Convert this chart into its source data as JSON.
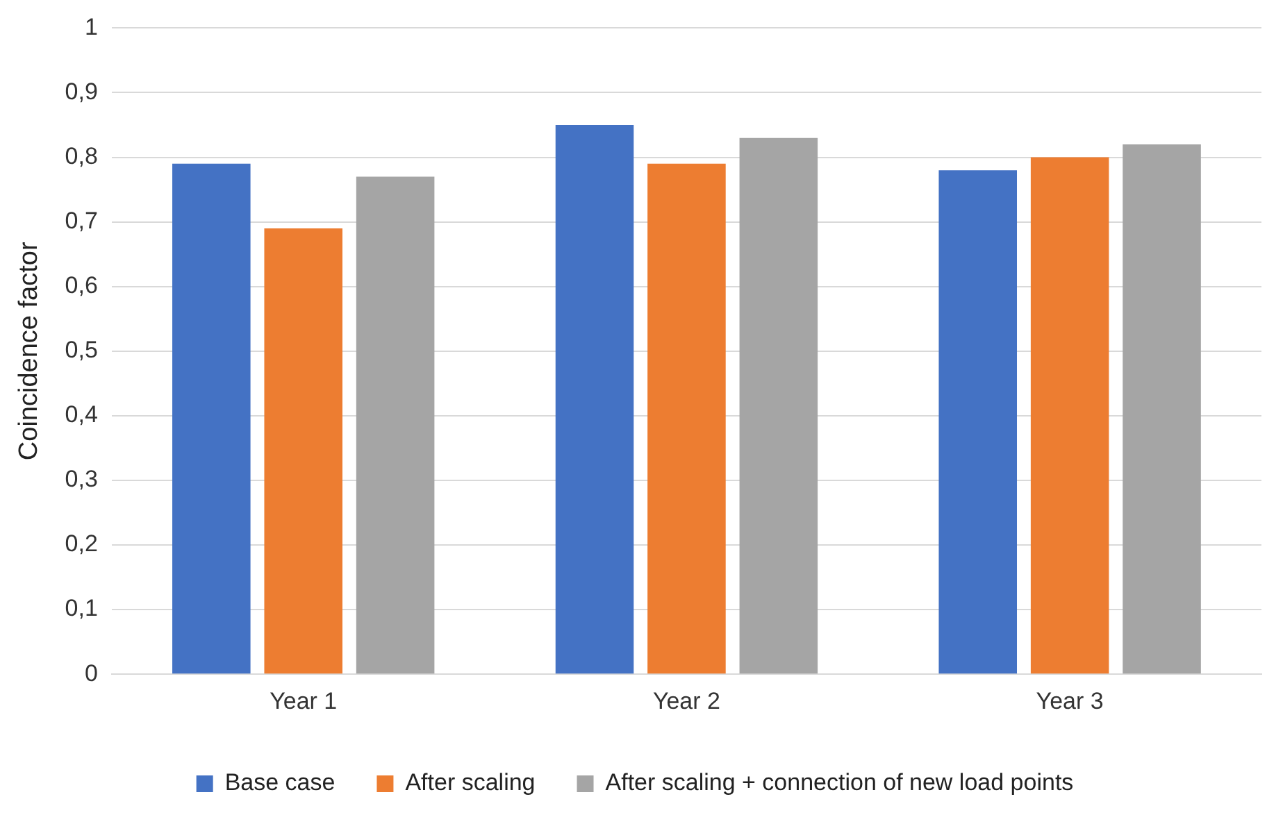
{
  "chart_data": {
    "type": "bar",
    "ylabel": "Coincidence factor",
    "categories": [
      "Year 1",
      "Year 2",
      "Year 3"
    ],
    "series": [
      {
        "name": "Base case",
        "color": "#4472c4",
        "values": [
          0.79,
          0.85,
          0.78
        ]
      },
      {
        "name": "After scaling",
        "color": "#ed7d31",
        "values": [
          0.69,
          0.79,
          0.8
        ]
      },
      {
        "name": "After scaling + connection of new load points",
        "color": "#a5a5a5",
        "values": [
          0.77,
          0.83,
          0.82
        ]
      }
    ],
    "ylim": [
      0,
      1
    ],
    "yticks": [
      0,
      {
        "value": 0.1,
        "label": "0,1"
      },
      {
        "value": 0.2,
        "label": "0,2"
      },
      {
        "value": 0.3,
        "label": "0,3"
      },
      {
        "value": 0.4,
        "label": "0,4"
      },
      {
        "value": 0.5,
        "label": "0,5"
      },
      {
        "value": 0.6,
        "label": "0,6"
      },
      {
        "value": 0.7,
        "label": "0,7"
      },
      {
        "value": 0.8,
        "label": "0,8"
      },
      {
        "value": 0.9,
        "label": "0,9"
      },
      1
    ],
    "grid": "y",
    "legend": "bottom"
  }
}
